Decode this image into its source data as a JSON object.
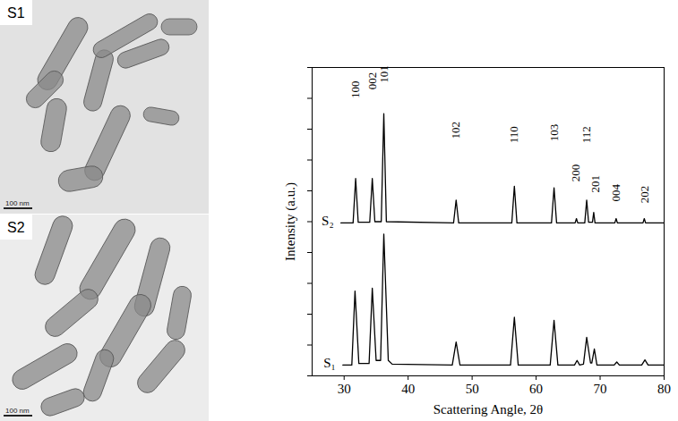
{
  "chart_data": {
    "type": "line",
    "x_label": "Scattering Angle, 2θ",
    "y_label": "Intensity (a.u.)",
    "xlim": [
      25,
      80
    ],
    "xticks": [
      30,
      40,
      50,
      60,
      70,
      80
    ],
    "ylim": [
      0,
      100
    ],
    "yticks": [
      0,
      10,
      20,
      30,
      40,
      50,
      60,
      70,
      80,
      90,
      100
    ],
    "tick_labels": "x",
    "series": [
      {
        "name": "S₂",
        "color": "#000000",
        "x": [
          29.5,
          31.4,
          31.8,
          32.2,
          34.0,
          34.4,
          34.8,
          35.8,
          36.2,
          36.6,
          47.1,
          47.5,
          47.9,
          56.2,
          56.6,
          57.0,
          62.4,
          62.8,
          63.2,
          66.1,
          66.3,
          66.5,
          67.6,
          67.9,
          68.2,
          68.8,
          69.0,
          69.2,
          72.3,
          72.5,
          72.7,
          76.7,
          76.9,
          77.1,
          80
        ],
        "values": [
          49.6,
          49.6,
          64,
          49.8,
          49.8,
          64,
          50,
          50,
          85,
          50,
          49.6,
          57,
          49.6,
          49.6,
          61.5,
          49.6,
          49.6,
          61,
          49.6,
          49.6,
          51,
          49.6,
          49.6,
          57,
          49.8,
          49.8,
          53,
          49.6,
          49.6,
          51,
          49.6,
          49.6,
          51,
          49.6,
          49.6
        ]
      },
      {
        "name": "S₁",
        "color": "#000000",
        "x": [
          29.8,
          31.2,
          31.7,
          32.3,
          33.9,
          34.4,
          35.0,
          35.7,
          36.2,
          36.9,
          37.5,
          46.9,
          47.5,
          48.1,
          56.0,
          56.6,
          57.2,
          62.2,
          62.8,
          63.4,
          66.0,
          66.4,
          66.8,
          67.4,
          67.9,
          68.5,
          68.7,
          69.1,
          69.5,
          72.2,
          72.6,
          73.0,
          76.5,
          77.0,
          77.5,
          80
        ],
        "values": [
          3.5,
          3.5,
          27.5,
          4,
          4,
          28.4,
          5,
          5,
          46,
          5,
          3.8,
          3.5,
          11,
          3.5,
          3.5,
          19,
          3.5,
          3.5,
          18,
          3.5,
          3.5,
          5,
          3.5,
          3.8,
          12.5,
          4.2,
          4.2,
          8.7,
          3.5,
          3.5,
          4.5,
          3.5,
          3.5,
          5.2,
          3.5,
          3.5
        ]
      }
    ],
    "annotations": [
      {
        "text": "100",
        "x": 31.8,
        "y": 90
      },
      {
        "text": "002",
        "x": 34.4,
        "y": 92.8
      },
      {
        "text": "101",
        "x": 36.2,
        "y": 95
      },
      {
        "text": "102",
        "x": 47.5,
        "y": 76.8
      },
      {
        "text": "110",
        "x": 56.6,
        "y": 75.4
      },
      {
        "text": "103",
        "x": 62.8,
        "y": 76
      },
      {
        "text": "200",
        "x": 66.2,
        "y": 63
      },
      {
        "text": "112",
        "x": 67.9,
        "y": 75.4
      },
      {
        "text": "201",
        "x": 69.2,
        "y": 59.4
      },
      {
        "text": "004",
        "x": 72.5,
        "y": 56.5
      },
      {
        "text": "202",
        "x": 76.9,
        "y": 56
      }
    ]
  },
  "images": [
    {
      "label": "S1",
      "scale_bar": "100 nm"
    },
    {
      "label": "S2",
      "scale_bar": "100 nm"
    }
  ]
}
